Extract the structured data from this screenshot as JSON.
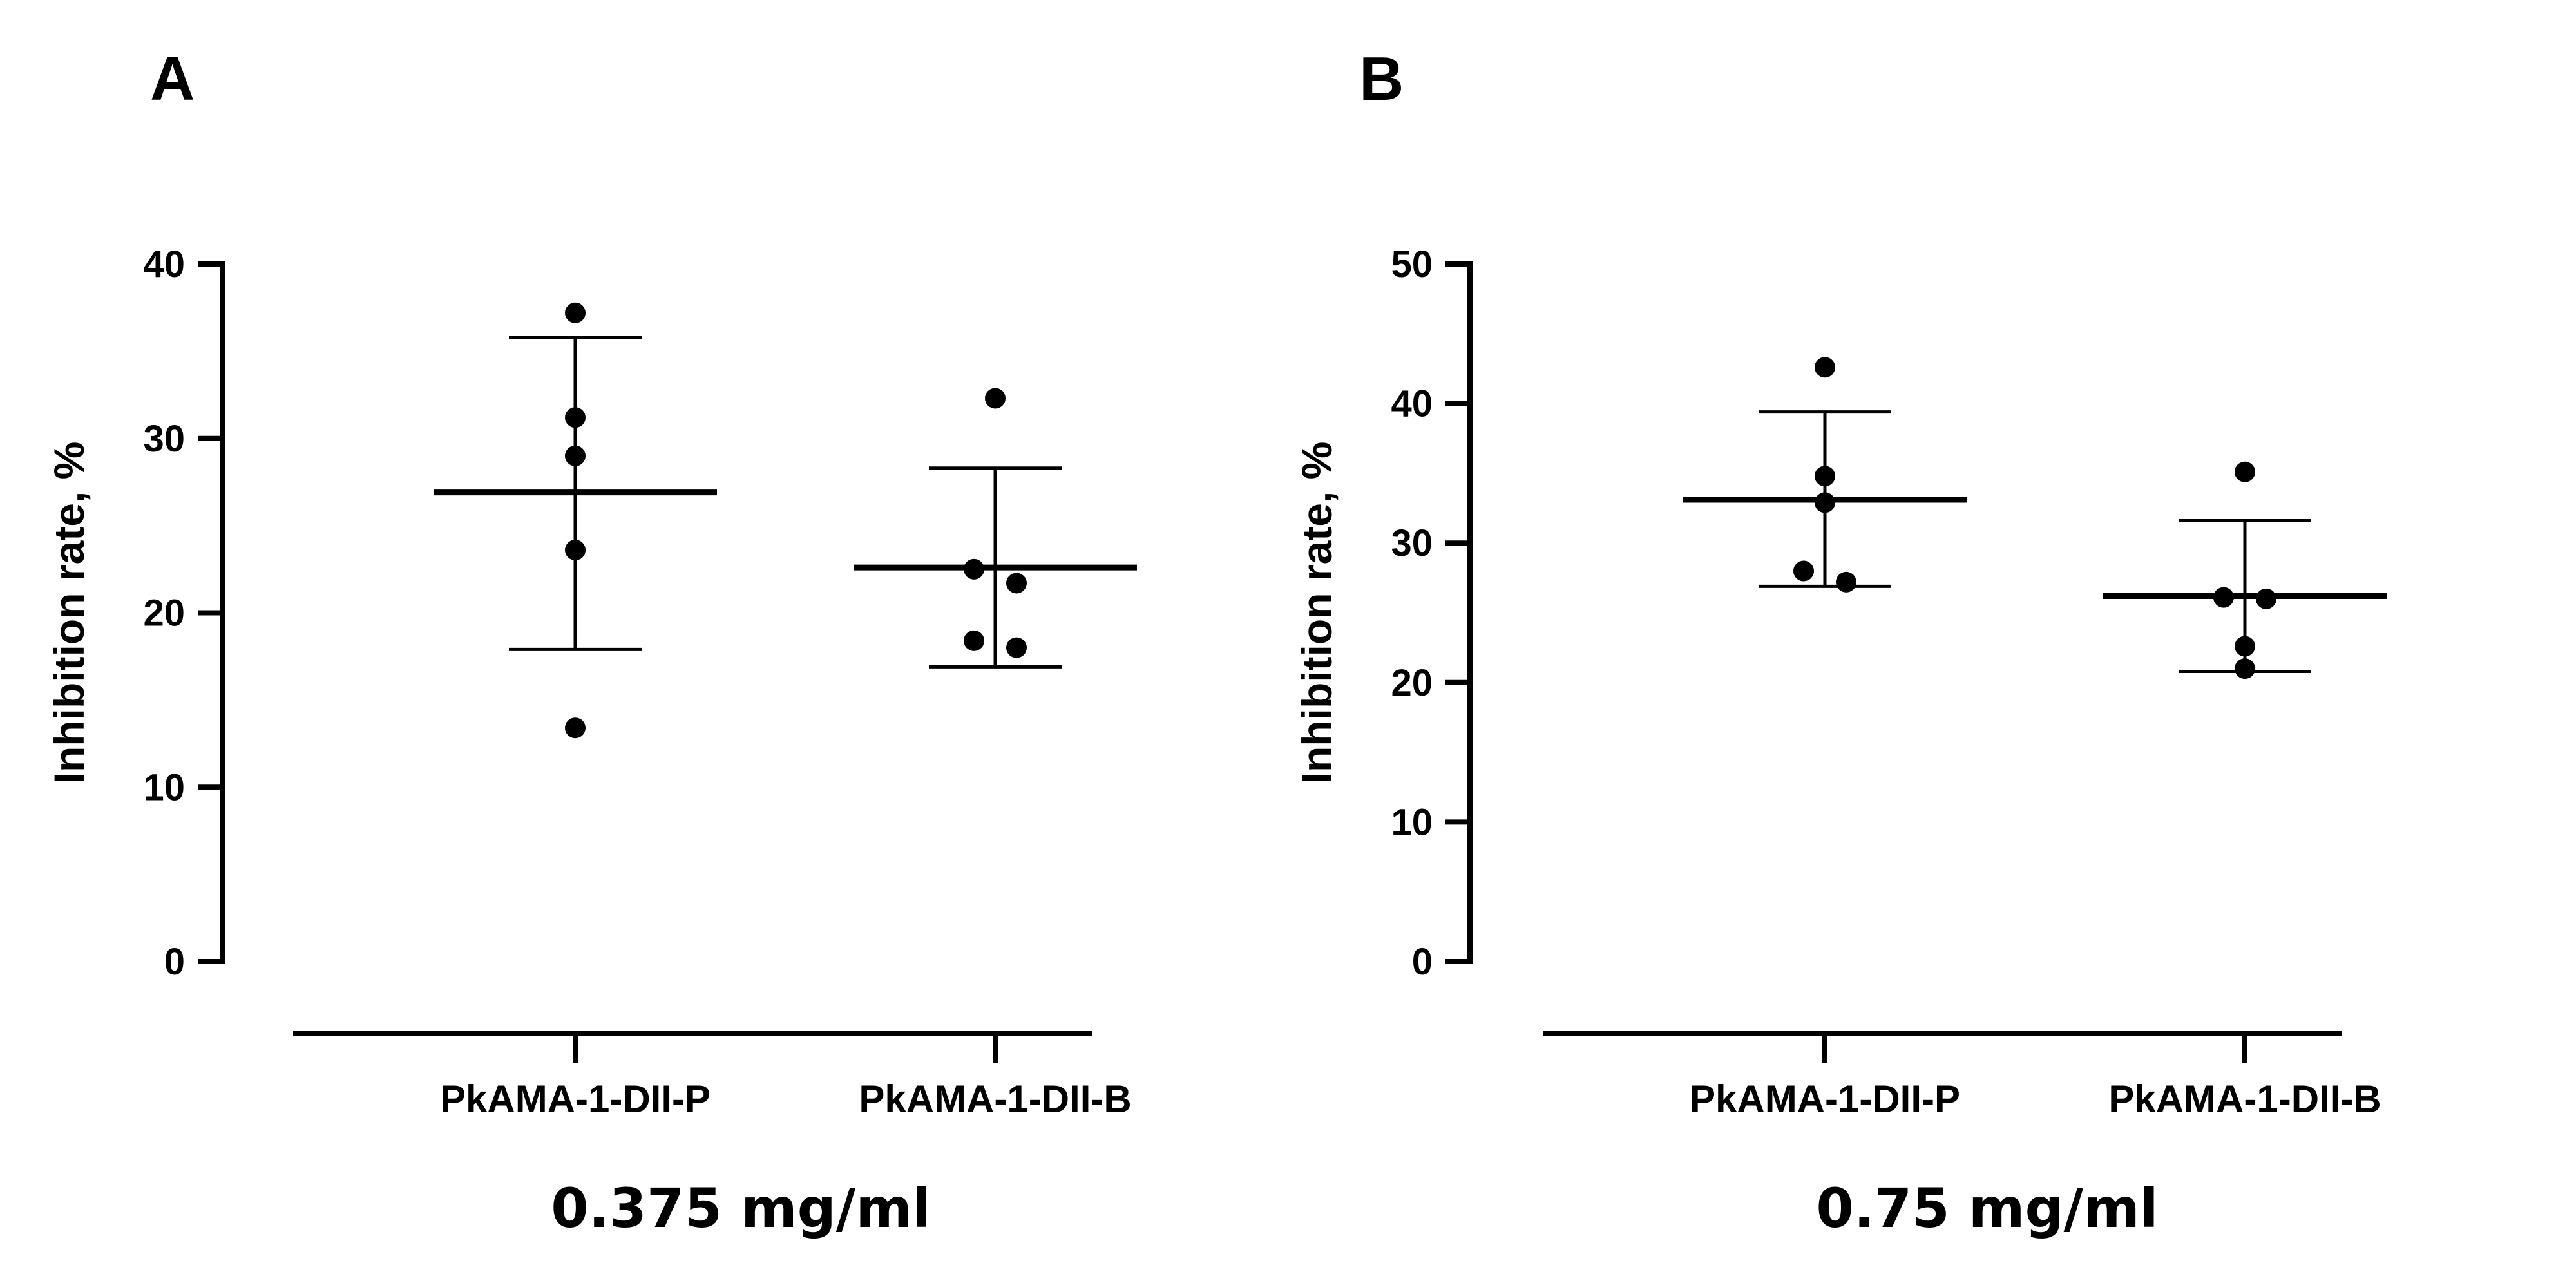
{
  "chart_data": [
    {
      "type": "scatter",
      "panel": "A",
      "ylabel": "Inhibition rate, %",
      "ylim": [
        0,
        40
      ],
      "yticks": [
        0,
        10,
        20,
        30,
        40
      ],
      "categories": [
        "PkAMA-1-DII-P",
        "PkAMA-1-DII-B"
      ],
      "xlabel": "0.375 mg/ml",
      "groups": [
        {
          "name": "PkAMA-1-DII-P",
          "points": [
            37.2,
            31.2,
            29.0,
            23.6,
            13.4
          ],
          "mean": 26.9,
          "sd_low": 17.9,
          "sd_high": 35.8
        },
        {
          "name": "PkAMA-1-DII-B",
          "points": [
            32.3,
            22.5,
            21.7,
            18.4,
            18.0
          ],
          "mean": 22.6,
          "sd_low": 16.9,
          "sd_high": 28.3
        }
      ]
    },
    {
      "type": "scatter",
      "panel": "B",
      "ylabel": "Inhibition rate, %",
      "ylim": [
        0,
        50
      ],
      "yticks": [
        0,
        10,
        20,
        30,
        40,
        50
      ],
      "categories": [
        "PkAMA-1-DII-P",
        "PkAMA-1-DII-B"
      ],
      "xlabel": "0.75 mg/ml",
      "groups": [
        {
          "name": "PkAMA-1-DII-P",
          "points": [
            42.6,
            34.8,
            32.9,
            28.0,
            27.2
          ],
          "mean": 33.1,
          "sd_low": 26.9,
          "sd_high": 39.4
        },
        {
          "name": "PkAMA-1-DII-B",
          "points": [
            35.1,
            26.1,
            26.0,
            22.6,
            21.0
          ],
          "mean": 26.2,
          "sd_low": 20.8,
          "sd_high": 31.6
        }
      ]
    }
  ]
}
